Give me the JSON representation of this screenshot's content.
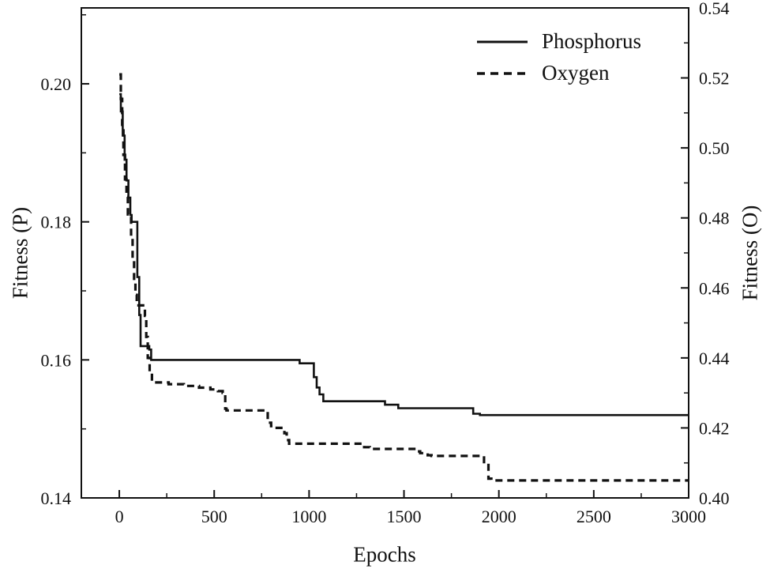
{
  "figure": {
    "xlabel": "Epochs",
    "ylabel_left": "Fitness (P)",
    "ylabel_right": "Fitness (O)"
  },
  "legend": {
    "items": [
      {
        "label": "Phosphorus",
        "style": "solid"
      },
      {
        "label": "Oxygen",
        "style": "dashed"
      }
    ]
  },
  "chart_data": {
    "type": "line",
    "title": "",
    "xlabel": "Epochs",
    "ylabel_left": "Fitness (P)",
    "ylabel_right": "Fitness (O)",
    "line_color": "#111111",
    "grid": false,
    "legend_position": "top-right-inside",
    "xlim": [
      -200,
      3000
    ],
    "xticks": [
      0,
      500,
      1000,
      1500,
      2000,
      2500,
      3000
    ],
    "xtick_labels": [
      "0",
      "500",
      "1000",
      "1500",
      "2000",
      "2500",
      "3000"
    ],
    "x_minor_ticks": [
      250,
      750,
      1250,
      1750,
      2250,
      2750
    ],
    "left_axis": {
      "lim": [
        0.14,
        0.211
      ],
      "ticks": [
        0.14,
        0.16,
        0.18,
        0.2
      ],
      "labels": [
        "0.14",
        "0.16",
        "0.18",
        "0.20"
      ],
      "minor": [
        0.15,
        0.17,
        0.19,
        0.21
      ]
    },
    "right_axis": {
      "lim": [
        0.4,
        0.54
      ],
      "ticks": [
        0.4,
        0.42,
        0.44,
        0.46,
        0.48,
        0.5,
        0.52,
        0.54
      ],
      "labels": [
        "0.40",
        "0.42",
        "0.44",
        "0.46",
        "0.48",
        "0.50",
        "0.52",
        "0.54"
      ],
      "minor": [
        0.41,
        0.43,
        0.45,
        0.47,
        0.49,
        0.51,
        0.53
      ]
    },
    "series": [
      {
        "name": "Phosphorus",
        "axis": "left",
        "style": "solid",
        "points": [
          [
            0,
            0.1985
          ],
          [
            8,
            0.196
          ],
          [
            18,
            0.1925
          ],
          [
            28,
            0.189
          ],
          [
            38,
            0.186
          ],
          [
            48,
            0.1835
          ],
          [
            58,
            0.181
          ],
          [
            65,
            0.18
          ],
          [
            88,
            0.18
          ],
          [
            95,
            0.172
          ],
          [
            105,
            0.1665
          ],
          [
            112,
            0.162
          ],
          [
            150,
            0.162
          ],
          [
            158,
            0.1615
          ],
          [
            168,
            0.16
          ],
          [
            940,
            0.16
          ],
          [
            950,
            0.1595
          ],
          [
            1015,
            0.1595
          ],
          [
            1025,
            0.1575
          ],
          [
            1040,
            0.156
          ],
          [
            1055,
            0.155
          ],
          [
            1075,
            0.154
          ],
          [
            1390,
            0.154
          ],
          [
            1400,
            0.1535
          ],
          [
            1460,
            0.1535
          ],
          [
            1470,
            0.153
          ],
          [
            1850,
            0.153
          ],
          [
            1865,
            0.1522
          ],
          [
            1900,
            0.152
          ],
          [
            3000,
            0.152
          ]
        ]
      },
      {
        "name": "Oxygen",
        "axis": "right",
        "style": "dashed",
        "points": [
          [
            0,
            0.521
          ],
          [
            8,
            0.514
          ],
          [
            15,
            0.505
          ],
          [
            22,
            0.498
          ],
          [
            30,
            0.491
          ],
          [
            38,
            0.486
          ],
          [
            45,
            0.481
          ],
          [
            52,
            0.48
          ],
          [
            62,
            0.474
          ],
          [
            70,
            0.468
          ],
          [
            78,
            0.462
          ],
          [
            85,
            0.458
          ],
          [
            92,
            0.455
          ],
          [
            128,
            0.455
          ],
          [
            135,
            0.452
          ],
          [
            142,
            0.446
          ],
          [
            150,
            0.44
          ],
          [
            160,
            0.436
          ],
          [
            172,
            0.433
          ],
          [
            240,
            0.433
          ],
          [
            260,
            0.4325
          ],
          [
            340,
            0.432
          ],
          [
            420,
            0.4315
          ],
          [
            480,
            0.431
          ],
          [
            520,
            0.4305
          ],
          [
            545,
            0.43
          ],
          [
            558,
            0.4255
          ],
          [
            565,
            0.425
          ],
          [
            770,
            0.425
          ],
          [
            782,
            0.4215
          ],
          [
            800,
            0.4205
          ],
          [
            812,
            0.42
          ],
          [
            870,
            0.4185
          ],
          [
            882,
            0.4165
          ],
          [
            895,
            0.4155
          ],
          [
            1270,
            0.4155
          ],
          [
            1290,
            0.4145
          ],
          [
            1320,
            0.414
          ],
          [
            1545,
            0.414
          ],
          [
            1562,
            0.4133
          ],
          [
            1585,
            0.4128
          ],
          [
            1625,
            0.4122
          ],
          [
            1645,
            0.412
          ],
          [
            1900,
            0.412
          ],
          [
            1922,
            0.4098
          ],
          [
            1945,
            0.4055
          ],
          [
            1960,
            0.405
          ],
          [
            3000,
            0.405
          ]
        ]
      }
    ]
  }
}
